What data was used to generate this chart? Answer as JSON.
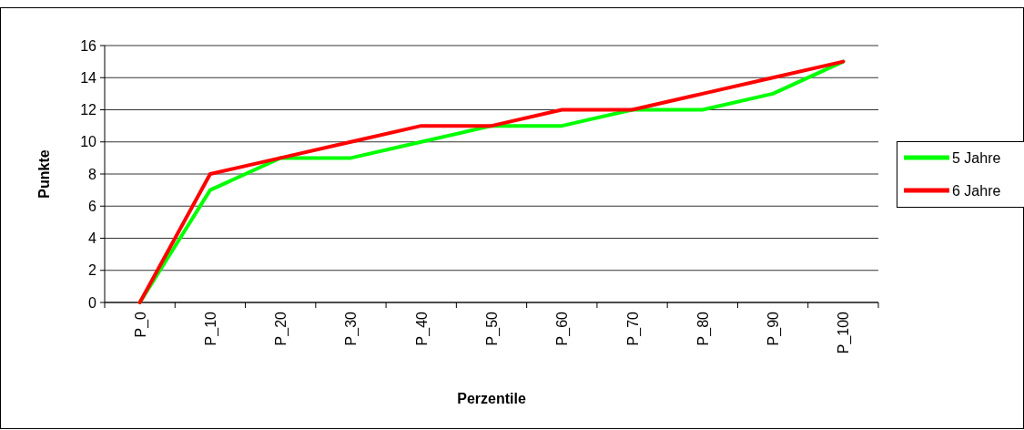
{
  "chart_data": {
    "type": "line",
    "xlabel": "Perzentile",
    "ylabel": "Punkte",
    "categories": [
      "P_0",
      "P_10",
      "P_20",
      "P_30",
      "P_40",
      "P_50",
      "P_60",
      "P_70",
      "P_80",
      "P_90",
      "P_100"
    ],
    "series": [
      {
        "name": "5 Jahre",
        "color": "#00ff00",
        "values": [
          0,
          7,
          9,
          9,
          10,
          11,
          11,
          12,
          12,
          13,
          15
        ]
      },
      {
        "name": "6 Jahre",
        "color": "#ff0000",
        "values": [
          0,
          8,
          9,
          10,
          11,
          11,
          12,
          12,
          13,
          14,
          15
        ]
      }
    ],
    "ylim": [
      0,
      16
    ],
    "yticks": [
      0,
      2,
      4,
      6,
      8,
      10,
      12,
      14,
      16
    ],
    "grid": "y",
    "legend": "right",
    "marker": "none",
    "line_style": "solid"
  }
}
